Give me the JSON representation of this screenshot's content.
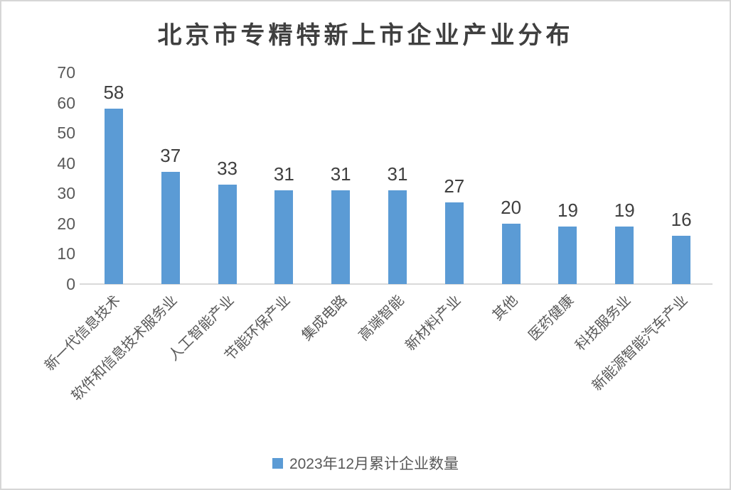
{
  "chart_data": {
    "type": "bar",
    "title": "北京市专精特新上市企业产业分布",
    "categories": [
      "新一代信息技术",
      "软件和信息技术服务业",
      "人工智能产业",
      "节能环保产业",
      "集成电路",
      "高端智能",
      "新材料产业",
      "其他",
      "医药健康",
      "科技服务业",
      "新能源智能汽车产业"
    ],
    "values": [
      58,
      37,
      33,
      31,
      31,
      31,
      27,
      20,
      19,
      19,
      16
    ],
    "series_name": "2023年12月累计企业数量",
    "xlabel": "",
    "ylabel": "",
    "ylim": [
      0,
      70
    ],
    "yticks": [
      0,
      10,
      20,
      30,
      40,
      50,
      60,
      70
    ],
    "grid": false,
    "data_labels_shown": true,
    "x_tick_rotation": 45,
    "legend_position": "bottom",
    "colors": {
      "bar": "#5B9BD5",
      "title_text": "#3F3F3F",
      "data_label_text": "#3F3F3F",
      "axis_text": "#595959",
      "axis_line": "#D9D9D9",
      "border": "#D6D6D6",
      "background": "#FFFFFF"
    }
  }
}
